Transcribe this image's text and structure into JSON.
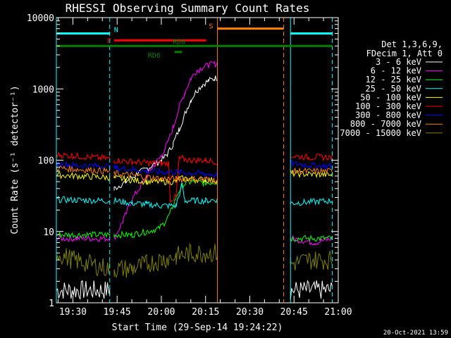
{
  "chart_data": {
    "type": "line",
    "title": "RHESSI Observing Summary Count Rates",
    "xlabel": "Start Time (29-Sep-14 19:24:22)",
    "ylabel": "Count Rate (s⁻¹ detector⁻¹)",
    "y_scale": "log",
    "ylim": [
      1,
      10000
    ],
    "xlim_minutes_after_19_00": [
      24.4,
      120.0
    ],
    "x_tick_labels": [
      "19:30",
      "19:45",
      "20:00",
      "20:15",
      "20:30",
      "20:45",
      "21:00"
    ],
    "x_tick_minutes": [
      30,
      45,
      60,
      75,
      90,
      105,
      120
    ],
    "y_tick_labels": [
      "1",
      "10",
      "100",
      "1000",
      "10000"
    ],
    "y_tick_values": [
      1,
      10,
      100,
      1000,
      10000
    ],
    "legend_header": [
      "Det 1,3,6,9,",
      "FDecim 1, Att 0"
    ],
    "legend_position": "right",
    "timestamp": "20-Oct-2021 13:59",
    "data_gaps_minutes": [
      [
        42.5,
        44.0
      ],
      [
        79.0,
        103.8
      ]
    ],
    "series": [
      {
        "name": "3 - 6 keV",
        "color": "#ffffff",
        "x": [
          24.4,
          42.5,
          44.0,
          48,
          52,
          56,
          60,
          62,
          64,
          66,
          68,
          70,
          72,
          74,
          76,
          78,
          79,
          103.8,
          118
        ],
        "y": [
          1.5,
          1.5,
          40,
          50,
          65,
          80,
          100,
          120,
          170,
          270,
          450,
          700,
          950,
          1150,
          1300,
          1400,
          1450,
          1.5,
          1.5
        ]
      },
      {
        "name": "6 - 12 keV",
        "color": "#ff00ff",
        "x": [
          24.4,
          42.5,
          44.0,
          47,
          50,
          54,
          57,
          60,
          62,
          64,
          66,
          68,
          70,
          72,
          74,
          76,
          78,
          79,
          103.8,
          112,
          118
        ],
        "y": [
          8,
          8,
          8,
          14,
          28,
          50,
          80,
          115,
          170,
          290,
          550,
          900,
          1400,
          1800,
          2000,
          2150,
          2250,
          2300,
          8,
          7,
          8
        ]
      },
      {
        "name": "12 - 25 keV",
        "color": "#00ff00",
        "x": [
          24.4,
          42.5,
          44.0,
          50,
          55,
          59,
          61,
          63,
          65,
          67,
          70,
          75,
          79,
          103.8,
          118
        ],
        "y": [
          9,
          9,
          9,
          9,
          10,
          11,
          13,
          18,
          30,
          45,
          50,
          48,
          50,
          8,
          8
        ]
      },
      {
        "name": "25 - 50 keV",
        "color": "#00ffff",
        "x": [
          24.4,
          42.5,
          44.0,
          50,
          55,
          60,
          65,
          67,
          68,
          75,
          79,
          103.8,
          118
        ],
        "y": [
          28,
          27,
          27,
          25,
          24,
          23,
          23,
          45,
          27,
          27,
          28,
          25,
          27
        ]
      },
      {
        "name": "50 - 100 keV",
        "color": "#ffff00",
        "x": [
          24.4,
          42.5,
          44.0,
          50,
          55,
          60,
          65,
          66,
          70,
          75,
          79,
          103.8,
          118
        ],
        "y": [
          62,
          57,
          56,
          53,
          50,
          50,
          50,
          55,
          55,
          53,
          52,
          65,
          62
        ]
      },
      {
        "name": "100 - 300 keV",
        "color": "#ff0000",
        "x": [
          24.4,
          30,
          42.5,
          44.0,
          50,
          55,
          60,
          62.5,
          63,
          65,
          66,
          67,
          70,
          75,
          79,
          103.8,
          110,
          118
        ],
        "y": [
          120,
          115,
          105,
          100,
          95,
          92,
          90,
          90,
          28,
          30,
          105,
          105,
          100,
          100,
          95,
          115,
          110,
          110
        ]
      },
      {
        "name": "300 - 800 keV",
        "color": "#0000ff",
        "x": [
          24.4,
          30,
          42.5,
          44.0,
          50,
          55,
          60,
          65,
          70,
          75,
          79,
          103.8,
          110,
          118
        ],
        "y": [
          90,
          85,
          82,
          78,
          74,
          70,
          68,
          68,
          66,
          64,
          62,
          90,
          85,
          82
        ]
      },
      {
        "name": "800 - 7000 keV",
        "color": "#ff8000",
        "x": [
          24.4,
          30,
          42.5,
          44.0,
          50,
          55,
          60,
          65,
          70,
          75,
          79,
          103.8,
          118
        ],
        "y": [
          78,
          75,
          70,
          65,
          62,
          58,
          55,
          55,
          54,
          54,
          52,
          70,
          70
        ]
      },
      {
        "name": "7000 - 15000 keV",
        "color": "#808000",
        "x": [
          24.4,
          30,
          42.5,
          44.0,
          50,
          55,
          60,
          65,
          70,
          75,
          79,
          103.8,
          110,
          118
        ],
        "y": [
          5,
          4,
          3,
          3,
          3,
          3.5,
          4,
          4.5,
          5,
          5,
          5,
          3.5,
          4,
          4
        ]
      }
    ],
    "bars": [
      {
        "label": "N",
        "color": "#00ffff",
        "y": 6000,
        "segments": [
          [
            24.4,
            42.5
          ],
          [
            103.8,
            118
          ]
        ]
      },
      {
        "label": "F",
        "color": "#ff0000",
        "y": 4800,
        "segments": [
          [
            44.0,
            75.2
          ]
        ]
      },
      {
        "label": "RD0",
        "color": "#008000",
        "y": 4000,
        "segments": [
          [
            24.4,
            118
          ]
        ]
      },
      {
        "label": "RD6",
        "color": "#008000",
        "y": 3300,
        "segments": [
          [
            64.5,
            67
          ]
        ]
      },
      {
        "label": "S",
        "color": "#ff8000",
        "y": 7000,
        "segments": [
          [
            79,
            101.5
          ]
        ]
      }
    ],
    "vertical_lines": [
      {
        "x": 24.4,
        "color": "#00ffff",
        "style": "solid"
      },
      {
        "x": 42.5,
        "color": "#00ffff",
        "style": "dashed"
      },
      {
        "x": 79,
        "color": "#ff8000",
        "style": "solid"
      },
      {
        "x": 101.5,
        "color": "#ff8000",
        "style": "dashed"
      },
      {
        "x": 103.8,
        "color": "#00ffff",
        "style": "solid"
      },
      {
        "x": 118,
        "color": "#00ffff",
        "style": "dashed"
      }
    ]
  }
}
